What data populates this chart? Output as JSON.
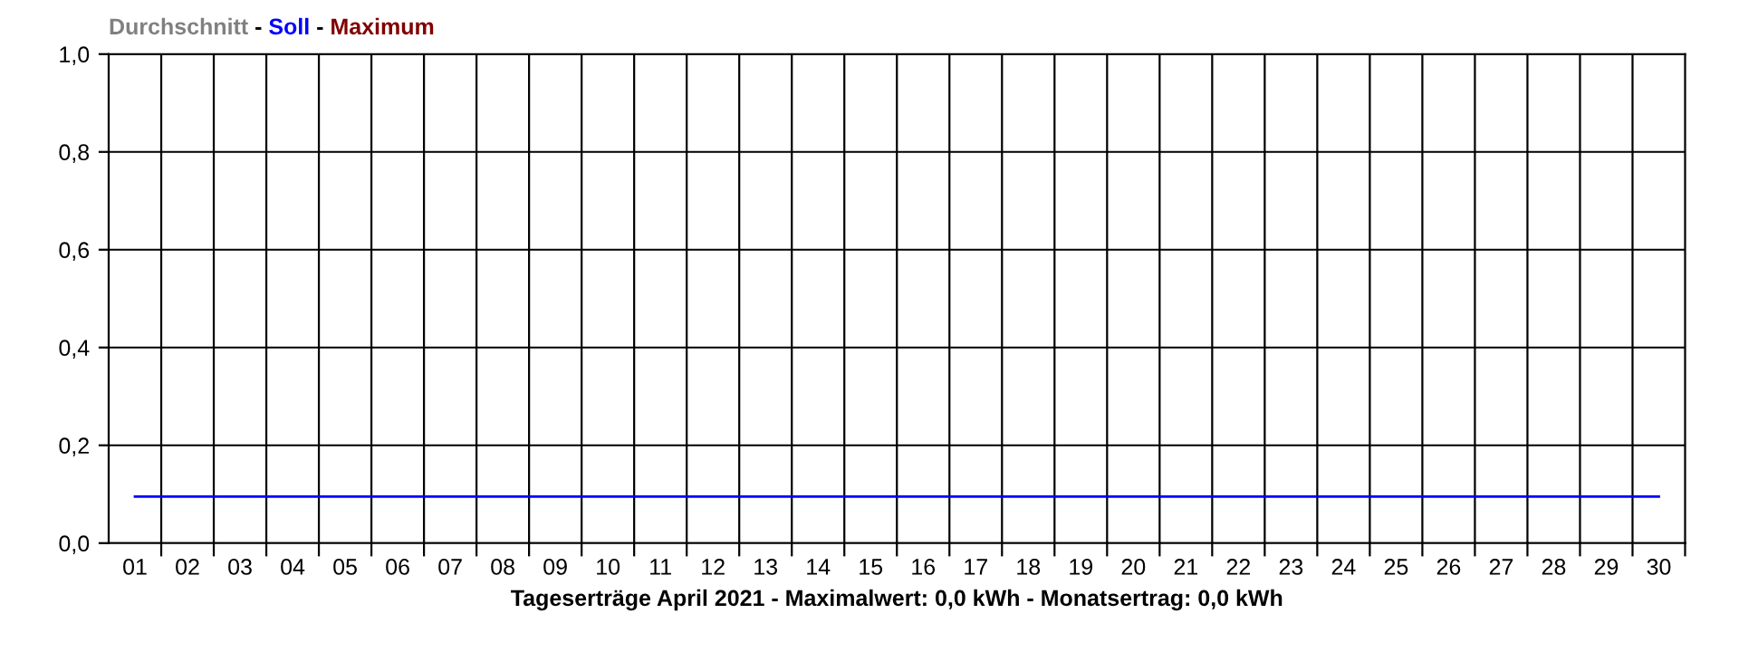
{
  "chart_data": {
    "type": "bar",
    "xlabel": "Tageserträge April 2021 - Maximalwert: 0,0 kWh - Monatsertrag: 0,0 kWh",
    "categories": [
      "01",
      "02",
      "03",
      "04",
      "05",
      "06",
      "07",
      "08",
      "09",
      "10",
      "11",
      "12",
      "13",
      "14",
      "15",
      "16",
      "17",
      "18",
      "19",
      "20",
      "21",
      "22",
      "23",
      "24",
      "25",
      "26",
      "27",
      "28",
      "29",
      "30"
    ],
    "series": [
      {
        "name": "Durchschnitt",
        "color": "#808080",
        "values": [
          0,
          0,
          0,
          0,
          0,
          0,
          0,
          0,
          0,
          0,
          0,
          0,
          0,
          0,
          0,
          0,
          0,
          0,
          0,
          0,
          0,
          0,
          0,
          0,
          0,
          0,
          0,
          0,
          0,
          0
        ]
      },
      {
        "name": "Soll",
        "color": "#0000ff",
        "type": "line",
        "values": [
          0.095,
          0.095,
          0.095,
          0.095,
          0.095,
          0.095,
          0.095,
          0.095,
          0.095,
          0.095,
          0.095,
          0.095,
          0.095,
          0.095,
          0.095,
          0.095,
          0.095,
          0.095,
          0.095,
          0.095,
          0.095,
          0.095,
          0.095,
          0.095,
          0.095,
          0.095,
          0.095,
          0.095,
          0.095,
          0.095
        ]
      },
      {
        "name": "Maximum",
        "color": "#800000",
        "values": [
          0,
          0,
          0,
          0,
          0,
          0,
          0,
          0,
          0,
          0,
          0,
          0,
          0,
          0,
          0,
          0,
          0,
          0,
          0,
          0,
          0,
          0,
          0,
          0,
          0,
          0,
          0,
          0,
          0,
          0
        ]
      }
    ],
    "ylim": [
      0,
      1
    ],
    "yticks": [
      {
        "value": 0,
        "label": "0,0"
      },
      {
        "value": 0.2,
        "label": "0,2"
      },
      {
        "value": 0.4,
        "label": "0,4"
      },
      {
        "value": 0.6,
        "label": "0,6"
      },
      {
        "value": 0.8,
        "label": "0,8"
      },
      {
        "value": 1,
        "label": "1,0"
      }
    ],
    "annotations": [
      " - ",
      " - "
    ],
    "grid": true,
    "legend": "top left"
  }
}
